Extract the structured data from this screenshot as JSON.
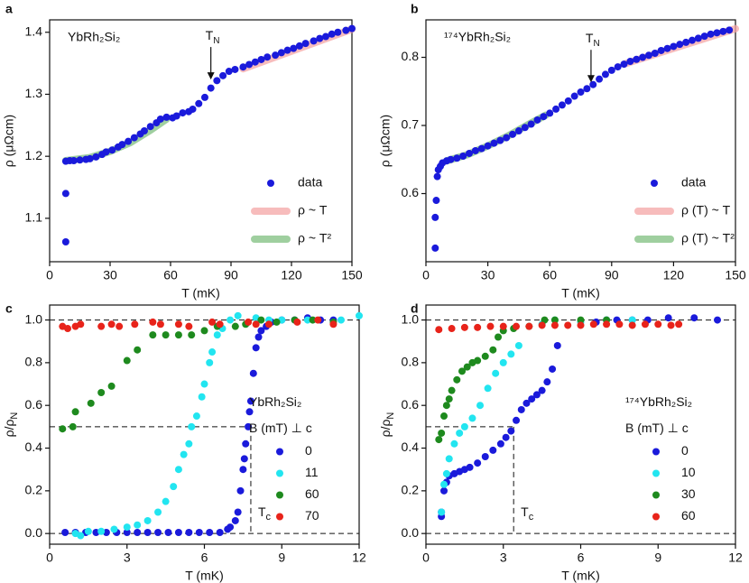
{
  "chart_data": [
    {
      "type": "scatter",
      "panel_label": "a",
      "compound": "YbRh₂Si₂",
      "xlabel": "T (mK)",
      "ylabel": "ρ (μΩcm)",
      "xlim": [
        0,
        150
      ],
      "ylim": [
        1.03,
        1.42
      ],
      "xticks": [
        0,
        30,
        60,
        90,
        120,
        150
      ],
      "yticks": [
        1.1,
        1.2,
        1.3,
        1.4
      ],
      "legend": "lower right",
      "annotations": [
        {
          "text": "T",
          "sub": "N",
          "x": 80,
          "y": 1.318
        }
      ],
      "series": [
        {
          "name": "data",
          "color": "#1a1adb",
          "x": [
            8,
            8,
            8,
            10,
            12,
            15,
            18,
            20,
            23,
            26,
            28,
            31,
            34,
            36,
            39,
            42,
            45,
            47,
            50,
            53,
            55,
            58,
            61,
            63,
            66,
            69,
            71,
            74,
            77,
            80,
            83,
            86,
            89,
            92,
            96,
            99,
            102,
            105,
            108,
            112,
            115,
            118,
            121,
            124,
            127,
            131,
            134,
            137,
            140,
            143,
            147,
            150
          ],
          "y": [
            1.062,
            1.14,
            1.192,
            1.193,
            1.193,
            1.194,
            1.195,
            1.196,
            1.199,
            1.203,
            1.207,
            1.21,
            1.215,
            1.219,
            1.224,
            1.23,
            1.236,
            1.241,
            1.248,
            1.254,
            1.26,
            1.263,
            1.262,
            1.265,
            1.27,
            1.272,
            1.276,
            1.285,
            1.295,
            1.31,
            1.322,
            1.33,
            1.337,
            1.34,
            1.344,
            1.348,
            1.352,
            1.356,
            1.36,
            1.363,
            1.367,
            1.371,
            1.374,
            1.378,
            1.382,
            1.386,
            1.39,
            1.393,
            1.397,
            1.4,
            1.403,
            1.406
          ]
        },
        {
          "name": "ρ ~ T",
          "color": "#f4a6a6",
          "style": "line",
          "x": [
            96,
            150
          ],
          "y": [
            1.341,
            1.405
          ]
        },
        {
          "name": "ρ ~ T²",
          "color": "#7fbf7f",
          "style": "line",
          "x": [
            8,
            20,
            30,
            40,
            50,
            58
          ],
          "y": [
            1.193,
            1.198,
            1.208,
            1.222,
            1.242,
            1.26
          ]
        }
      ]
    },
    {
      "type": "scatter",
      "panel_label": "b",
      "compound": "¹⁷⁴YbRh₂Si₂",
      "xlabel": "T (mK)",
      "ylabel": "ρ (μΩcm)",
      "xlim": [
        0,
        150
      ],
      "ylim": [
        0.5,
        0.855
      ],
      "xticks": [
        0,
        30,
        60,
        90,
        120,
        150
      ],
      "yticks": [
        0.6,
        0.7,
        0.8
      ],
      "legend": "lower right",
      "annotations": [
        {
          "text": "T",
          "sub": "N",
          "x": 80,
          "y": 0.758
        }
      ],
      "series": [
        {
          "name": "data",
          "color": "#1a1adb",
          "x": [
            4.5,
            4.5,
            5,
            5.5,
            6,
            7,
            8,
            10,
            12,
            15,
            18,
            21,
            24,
            27,
            30,
            33,
            36,
            39,
            42,
            45,
            48,
            51,
            54,
            57,
            60,
            63,
            66,
            69,
            72,
            75,
            78,
            81,
            84,
            87,
            90,
            93,
            96,
            99,
            102,
            105,
            108,
            111,
            114,
            117,
            120,
            123,
            126,
            129,
            132,
            135,
            138,
            141,
            144,
            147
          ],
          "y": [
            0.52,
            0.565,
            0.59,
            0.625,
            0.635,
            0.64,
            0.645,
            0.648,
            0.65,
            0.652,
            0.655,
            0.659,
            0.663,
            0.666,
            0.67,
            0.674,
            0.678,
            0.682,
            0.687,
            0.692,
            0.697,
            0.702,
            0.708,
            0.713,
            0.718,
            0.724,
            0.73,
            0.736,
            0.743,
            0.749,
            0.754,
            0.76,
            0.768,
            0.775,
            0.781,
            0.786,
            0.79,
            0.794,
            0.797,
            0.8,
            0.803,
            0.806,
            0.81,
            0.813,
            0.816,
            0.819,
            0.822,
            0.825,
            0.828,
            0.831,
            0.834,
            0.836,
            0.838,
            0.84
          ]
        },
        {
          "name": "ρ (T) ~ T",
          "color": "#f4a6a6",
          "style": "line",
          "x": [
            96,
            150
          ],
          "y": [
            0.79,
            0.842
          ]
        },
        {
          "name": "ρ (T) ~ T²",
          "color": "#7fbf7f",
          "style": "line",
          "x": [
            10,
            20,
            30,
            40,
            50,
            58
          ],
          "y": [
            0.648,
            0.657,
            0.67,
            0.685,
            0.702,
            0.715
          ]
        }
      ]
    },
    {
      "type": "scatter",
      "panel_label": "c",
      "compound": "YbRh₂Si₂",
      "xlabel": "T (mK)",
      "ylabel": {
        "text": "ρ/ρ",
        "sub": "N"
      },
      "xlim": [
        0,
        12
      ],
      "ylim": [
        -0.05,
        1.07
      ],
      "xticks": [
        0,
        3,
        6,
        9,
        12
      ],
      "yticks": [
        {
          "value": 0,
          "label": "0.0"
        },
        0.2,
        0.4,
        0.6,
        0.8,
        {
          "value": 1,
          "label": "1.0"
        }
      ],
      "legend": "center right",
      "legend_title": "B (mT) ⊥ c",
      "ref_lines": [
        0,
        1
      ],
      "tc": {
        "x": 7.8,
        "y": 0.5,
        "text": "T",
        "sub": "c"
      },
      "series": [
        {
          "name": "0",
          "color": "#1a1adb",
          "x": [
            0.6,
            1.0,
            1.4,
            1.8,
            2.2,
            2.6,
            3.0,
            3.4,
            3.8,
            4.2,
            4.6,
            5.0,
            5.4,
            5.8,
            6.2,
            6.6,
            6.9,
            7.0,
            7.2,
            7.3,
            7.4,
            7.5,
            7.55,
            7.6,
            7.7,
            7.75,
            7.8,
            7.9,
            8.0,
            8.1,
            8.2,
            8.4,
            8.6,
            9.0,
            9.5,
            10,
            10.5,
            11
          ],
          "y": [
            0.005,
            0.005,
            0.005,
            0.005,
            0.005,
            0.005,
            0.005,
            0.005,
            0.005,
            0.005,
            0.005,
            0.005,
            0.005,
            0.005,
            0.005,
            0.005,
            0.02,
            0.03,
            0.06,
            0.1,
            0.2,
            0.3,
            0.35,
            0.42,
            0.5,
            0.57,
            0.62,
            0.75,
            0.87,
            0.92,
            0.95,
            0.97,
            0.99,
            1.0,
            1.0,
            1.01,
            1.0,
            1.0
          ]
        },
        {
          "name": "11",
          "color": "#22e5f0",
          "x": [
            1.0,
            1.2,
            1.5,
            2,
            2.5,
            3,
            3.4,
            3.8,
            4.2,
            4.5,
            4.8,
            5.0,
            5.2,
            5.4,
            5.5,
            5.7,
            5.9,
            6.0,
            6.2,
            6.3,
            6.5,
            6.7,
            7.0,
            7.3,
            8,
            8.5,
            9,
            10,
            11.3,
            12
          ],
          "y": [
            0.0,
            -0.01,
            0.01,
            0.01,
            0.02,
            0.03,
            0.04,
            0.06,
            0.1,
            0.15,
            0.22,
            0.3,
            0.37,
            0.42,
            0.5,
            0.55,
            0.64,
            0.7,
            0.8,
            0.85,
            0.93,
            0.96,
            1.0,
            1.02,
            1.01,
            1.0,
            1.0,
            1.0,
            1.0,
            1.02
          ]
        },
        {
          "name": "60",
          "color": "#1e8a1e",
          "x": [
            0.5,
            0.9,
            1.0,
            1.6,
            2.0,
            2.4,
            3.0,
            3.4,
            4,
            4.5,
            5,
            5.5,
            6,
            6.5,
            7.2,
            7.6,
            8.2,
            8.8,
            9.5,
            10.2,
            11
          ],
          "y": [
            0.49,
            0.5,
            0.57,
            0.61,
            0.66,
            0.69,
            0.81,
            0.86,
            0.93,
            0.93,
            0.93,
            0.93,
            0.95,
            0.97,
            0.97,
            0.98,
            1.0,
            0.99,
            1.0,
            1.0,
            0.99
          ]
        },
        {
          "name": "70",
          "color": "#e8231a",
          "x": [
            0.5,
            0.7,
            1.0,
            1.2,
            2,
            2.4,
            2.7,
            3.3,
            4,
            4.3,
            5,
            5.4,
            6.3,
            6.6,
            7.7,
            8,
            8.5,
            9.6,
            10.4,
            11
          ],
          "y": [
            0.97,
            0.96,
            0.97,
            0.98,
            0.97,
            0.98,
            0.97,
            0.98,
            0.99,
            0.98,
            0.98,
            0.97,
            0.99,
            0.98,
            0.99,
            0.98,
            0.98,
            0.99,
            1.0,
            0.98
          ]
        }
      ]
    },
    {
      "type": "scatter",
      "panel_label": "d",
      "compound": "¹⁷⁴YbRh₂Si₂",
      "xlabel": "T (mK)",
      "ylabel": {
        "text": "ρ/ρ",
        "sub": "N"
      },
      "xlim": [
        0,
        12
      ],
      "ylim": [
        -0.05,
        1.07
      ],
      "xticks": [
        0,
        3,
        6,
        9,
        12
      ],
      "yticks": [
        {
          "value": 0,
          "label": "0.0"
        },
        0.2,
        0.4,
        0.6,
        0.8,
        {
          "value": 1,
          "label": "1.0"
        }
      ],
      "legend": "center right",
      "legend_title": "B (mT) ⊥ c",
      "ref_lines": [
        0,
        1
      ],
      "tc": {
        "x": 3.4,
        "y": 0.5,
        "text": "T",
        "sub": "c"
      },
      "series": [
        {
          "name": "0",
          "color": "#1a1adb",
          "x": [
            0.6,
            0.6,
            0.7,
            0.8,
            0.9,
            1.1,
            1.3,
            1.5,
            1.7,
            2.0,
            2.3,
            2.6,
            2.9,
            3.1,
            3.3,
            3.5,
            3.7,
            3.9,
            4.1,
            4.3,
            4.5,
            4.7,
            4.9,
            5.1,
            6.6,
            7,
            7.4,
            8,
            8.6,
            9.4,
            10.4,
            11.3
          ],
          "y": [
            0.08,
            0.1,
            0.2,
            0.24,
            0.27,
            0.28,
            0.29,
            0.3,
            0.31,
            0.33,
            0.36,
            0.39,
            0.42,
            0.45,
            0.48,
            0.53,
            0.58,
            0.61,
            0.63,
            0.65,
            0.67,
            0.71,
            0.77,
            0.88,
            0.99,
            1.0,
            1.0,
            1.0,
            1.0,
            1.01,
            1.01,
            1.0
          ]
        },
        {
          "name": "10",
          "color": "#22e5f0",
          "x": [
            0.6,
            0.7,
            0.8,
            0.9,
            1.1,
            1.3,
            1.5,
            1.8,
            2.1,
            2.4,
            2.7,
            3.0,
            3.3,
            3.6,
            4.5,
            5,
            6,
            7,
            8
          ],
          "y": [
            0.1,
            0.23,
            0.28,
            0.35,
            0.42,
            0.47,
            0.5,
            0.54,
            0.6,
            0.68,
            0.75,
            0.8,
            0.84,
            0.88,
            0.98,
            1.0,
            0.99,
            1.0,
            1.0
          ]
        },
        {
          "name": "30",
          "color": "#1e8a1e",
          "x": [
            0.5,
            0.6,
            0.7,
            0.8,
            0.9,
            1.0,
            1.2,
            1.4,
            1.6,
            1.8,
            2.0,
            2.3,
            2.6,
            2.8,
            3.0,
            3.4,
            4,
            4.6,
            5,
            6,
            7
          ],
          "y": [
            0.44,
            0.47,
            0.55,
            0.6,
            0.63,
            0.67,
            0.72,
            0.76,
            0.78,
            0.8,
            0.81,
            0.83,
            0.86,
            0.92,
            0.95,
            0.96,
            0.97,
            1.0,
            1.0,
            1.0,
            1.0
          ]
        },
        {
          "name": "60",
          "color": "#e8231a",
          "x": [
            0.5,
            1,
            1.5,
            2,
            2.5,
            3,
            3.5,
            4,
            4.5,
            5,
            5.5,
            6,
            6.5,
            7,
            7.5,
            8,
            8.5,
            9,
            9.5,
            9.8
          ],
          "y": [
            0.955,
            0.96,
            0.965,
            0.965,
            0.97,
            0.97,
            0.97,
            0.97,
            0.975,
            0.975,
            0.975,
            0.975,
            0.98,
            0.98,
            0.98,
            0.975,
            0.98,
            0.98,
            0.975,
            0.98
          ]
        }
      ]
    }
  ]
}
